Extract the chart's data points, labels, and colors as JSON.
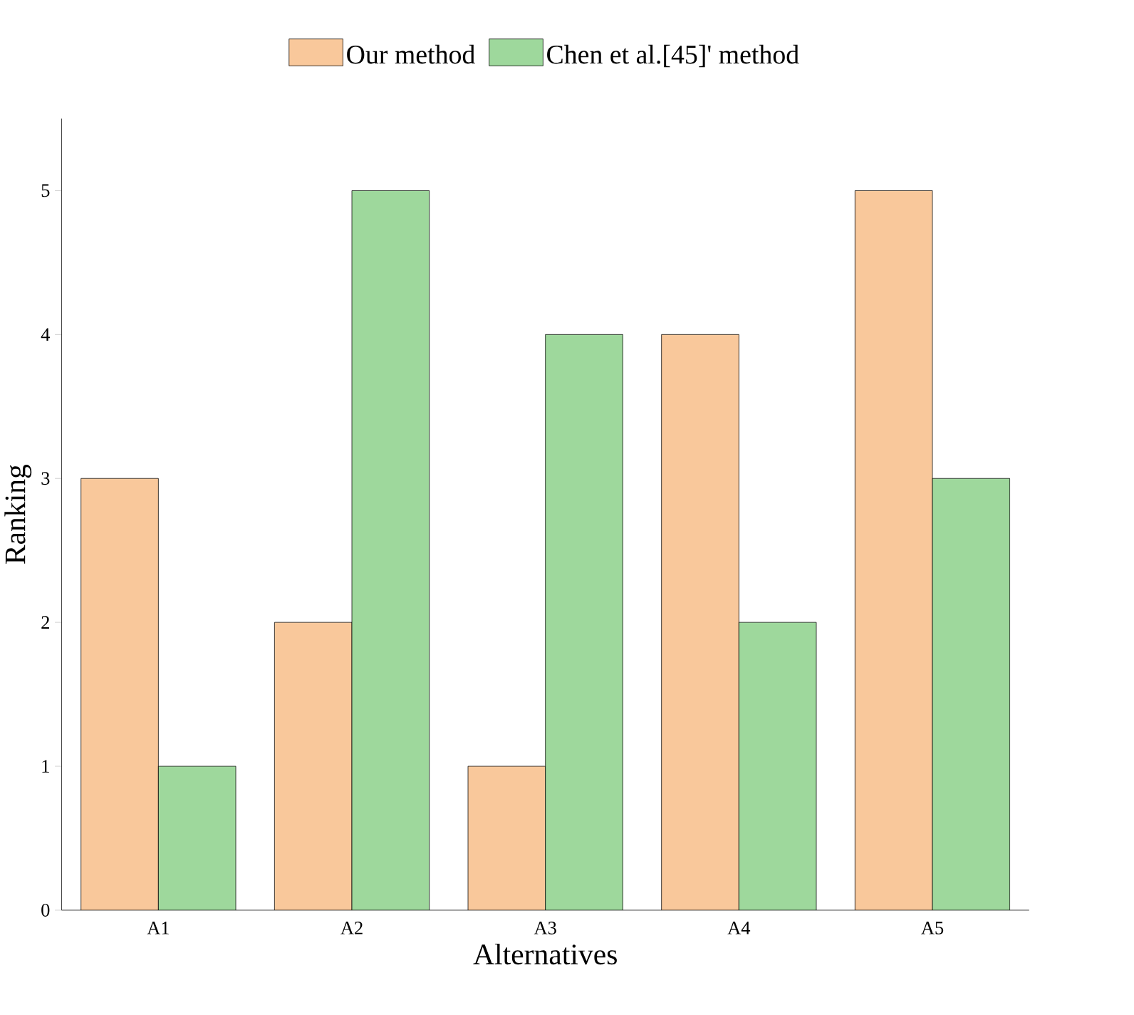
{
  "chart_data": {
    "type": "bar",
    "xlabel": "Alternatives",
    "ylabel": "Ranking",
    "categories": [
      "A1",
      "A2",
      "A3",
      "A4",
      "A5"
    ],
    "series": [
      {
        "name": "Our method",
        "color": "#f9c89b",
        "values": [
          3,
          2,
          1,
          4,
          5
        ]
      },
      {
        "name": "Chen et al.[45]' method",
        "color": "#9ed89c",
        "values": [
          1,
          5,
          4,
          2,
          3
        ]
      }
    ],
    "ylim": [
      0,
      5.5
    ],
    "yticks": [
      0,
      1,
      2,
      3,
      4,
      5
    ],
    "legend": "top"
  }
}
